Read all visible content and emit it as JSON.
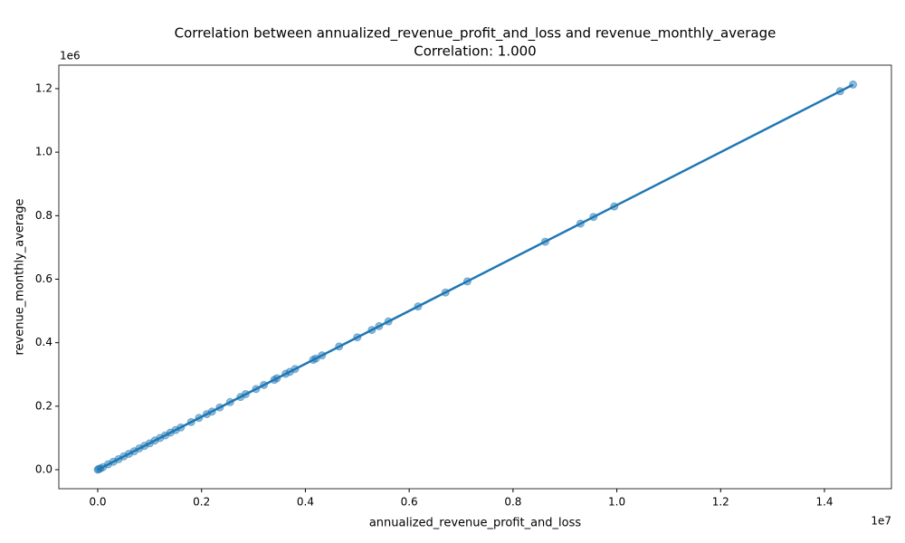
{
  "chart_data": {
    "type": "scatter",
    "title": "Correlation between annualized_revenue_profit_and_loss and revenue_monthly_average",
    "subtitle": "Correlation: 1.000",
    "x_label": "annualized_revenue_profit_and_loss",
    "y_label": "revenue_monthly_average",
    "x_offset_label": "1e7",
    "y_offset_label": "1e6",
    "color": "#1f77b4",
    "x": [
      14550000,
      14300000,
      9950000,
      9550000,
      9300000,
      8620000,
      7120000,
      6700000,
      6170000,
      5600000,
      5420000,
      5280000,
      5000000,
      4650000,
      4320000,
      4200000,
      4150000,
      3800000,
      3700000,
      3620000,
      3450000,
      3400000,
      3200000,
      3050000,
      2850000,
      2750000,
      2550000,
      2350000,
      2200000,
      2100000,
      1950000,
      1800000,
      1600000,
      1500000,
      1400000,
      1300000,
      1200000,
      1100000,
      1000000,
      900000,
      800000,
      700000,
      600000,
      500000,
      400000,
      300000,
      200000,
      100000,
      50000,
      20000,
      0
    ],
    "values": [
      1213000,
      1192000,
      829000,
      796000,
      775000,
      718000,
      593000,
      558000,
      514000,
      467000,
      452000,
      440000,
      417000,
      388000,
      360000,
      350000,
      346000,
      317000,
      308000,
      302000,
      288000,
      283000,
      267000,
      254000,
      238000,
      229000,
      213000,
      196000,
      183000,
      175000,
      163000,
      150000,
      133000,
      125000,
      117000,
      108000,
      100000,
      92000,
      83000,
      75000,
      67000,
      58000,
      50000,
      42000,
      33000,
      25000,
      17000,
      8000,
      4000,
      2000,
      0
    ],
    "trendline": {
      "x": [
        0,
        14550000
      ],
      "y": [
        0,
        1212500
      ],
      "color": "#1f77b4"
    },
    "xlim": [
      -750000,
      15290000
    ],
    "ylim": [
      -59860,
      1274000
    ],
    "xticks": [
      {
        "value": 0,
        "label": "0.0"
      },
      {
        "value": 2000000,
        "label": "0.2"
      },
      {
        "value": 4000000,
        "label": "0.4"
      },
      {
        "value": 6000000,
        "label": "0.6"
      },
      {
        "value": 8000000,
        "label": "0.8"
      },
      {
        "value": 10000000,
        "label": "1.0"
      },
      {
        "value": 12000000,
        "label": "1.2"
      },
      {
        "value": 14000000,
        "label": "1.4"
      }
    ],
    "yticks": [
      {
        "value": 0,
        "label": "0.0"
      },
      {
        "value": 200000,
        "label": "0.2"
      },
      {
        "value": 400000,
        "label": "0.4"
      },
      {
        "value": 600000,
        "label": "0.6"
      },
      {
        "value": 800000,
        "label": "0.8"
      },
      {
        "value": 1000000,
        "label": "1.0"
      },
      {
        "value": 1200000,
        "label": "1.2"
      }
    ],
    "grid": false
  }
}
